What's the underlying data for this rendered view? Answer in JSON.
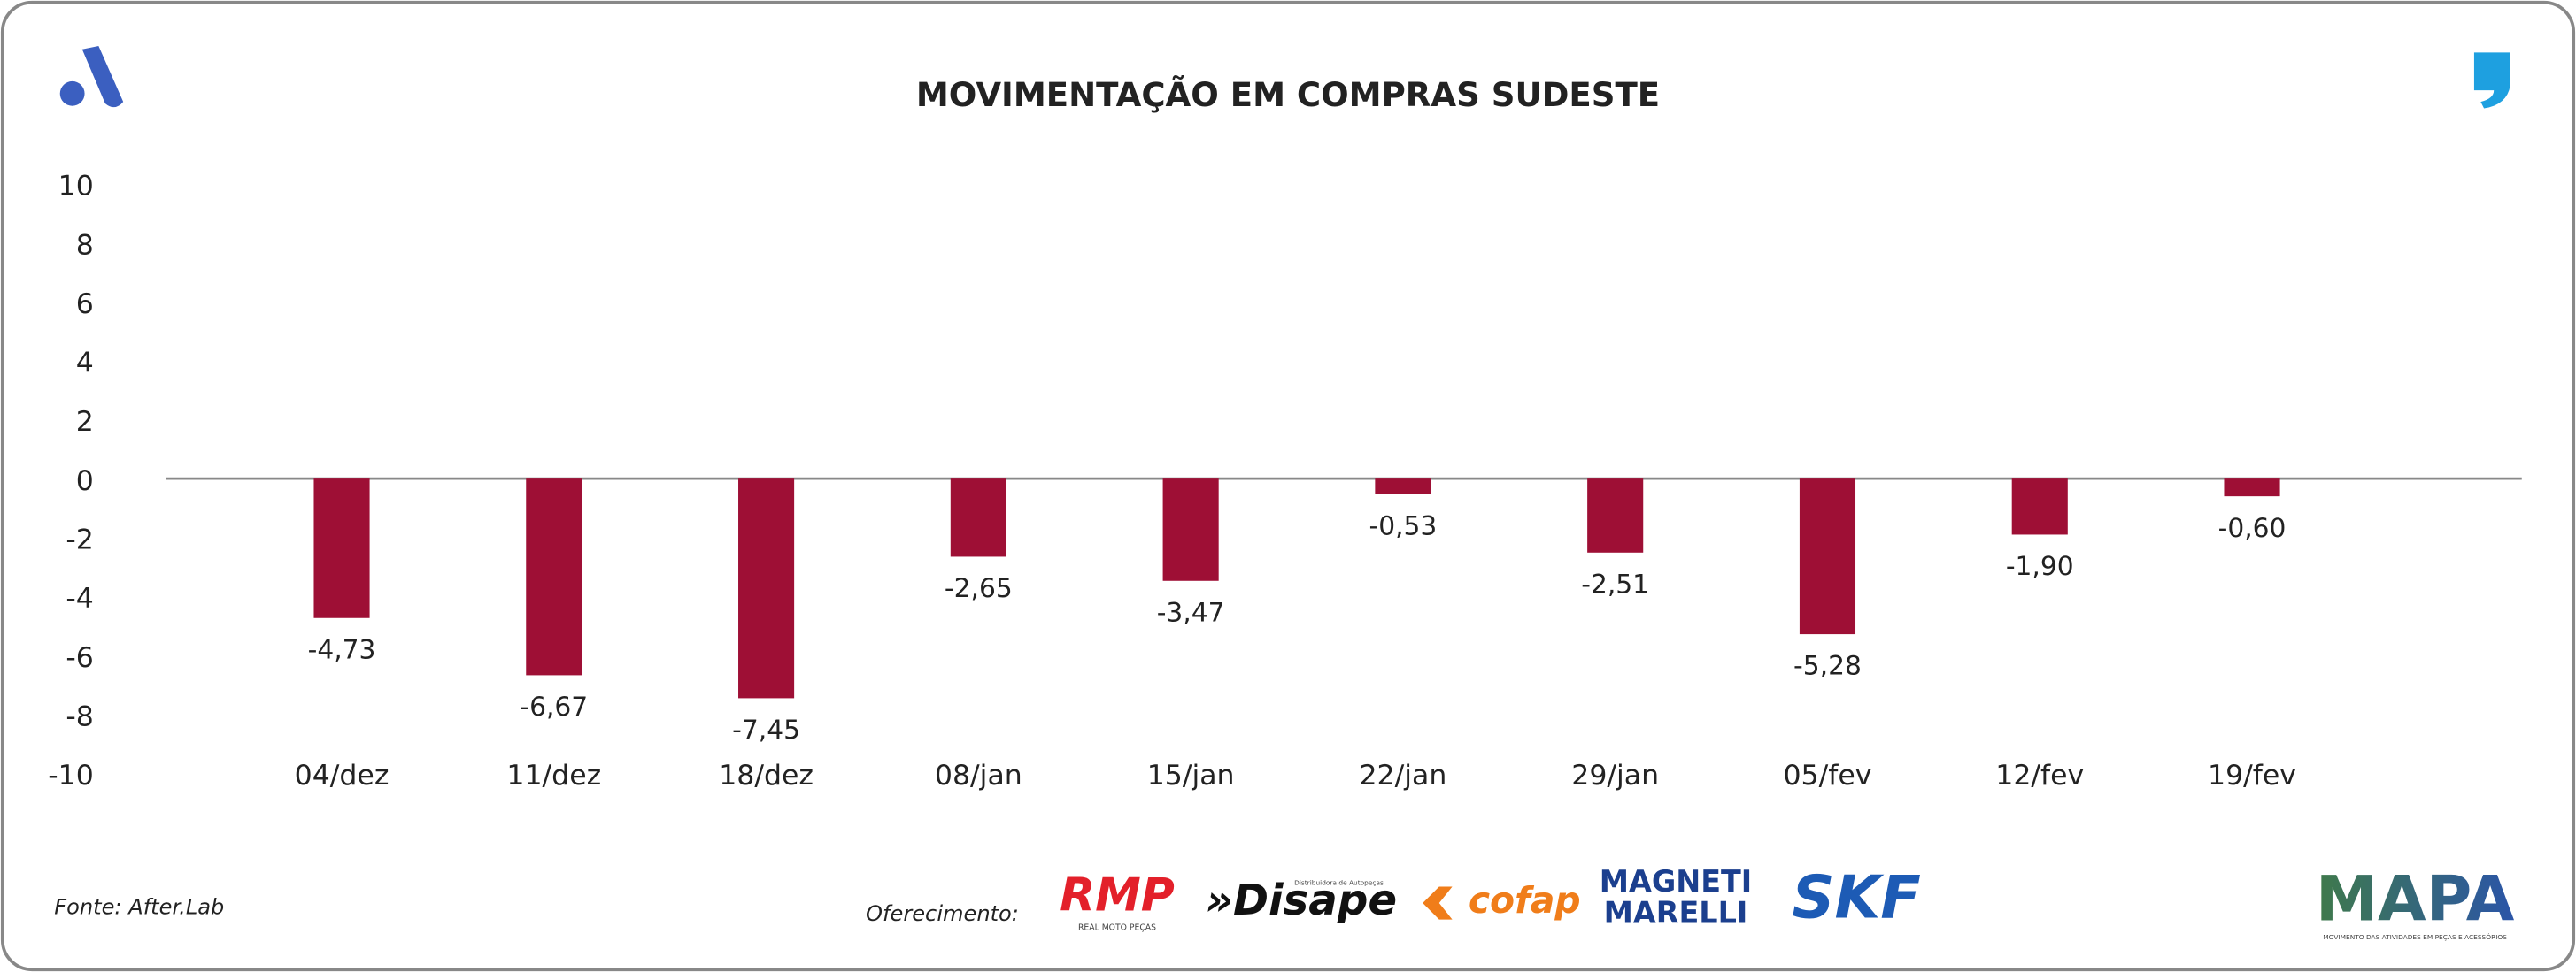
{
  "chart_data": {
    "type": "bar",
    "title": "MOVIMENTAÇÃO EM COMPRAS SUDESTE",
    "categories": [
      "04/dez",
      "11/dez",
      "18/dez",
      "08/jan",
      "15/jan",
      "22/jan",
      "29/jan",
      "05/fev",
      "12/fev",
      "19/fev"
    ],
    "values": [
      -4.73,
      -6.67,
      -7.45,
      -2.65,
      -3.47,
      -0.53,
      -2.51,
      -5.28,
      -1.9,
      -0.6
    ],
    "value_labels": [
      "-4,73",
      "-6,67",
      "-7,45",
      "-2,65",
      "-3,47",
      "-0,53",
      "-2,51",
      "-5,28",
      "-1,90",
      "-0,60"
    ],
    "color": "#9e0f35",
    "ylim": [
      -10,
      10
    ],
    "yticks": [
      -10,
      -8,
      -6,
      -4,
      -2,
      0,
      2,
      4,
      6,
      8,
      10
    ],
    "grid": false
  },
  "footer": {
    "source": "Fonte: After.Lab",
    "sponsor_label": "Oferecimento:",
    "sponsors": {
      "rmp": "RMP",
      "rmp_sub": "REAL MOTO PEÇAS",
      "disape": "»Disape",
      "disape_sub": "Distribuidora de Autopeças",
      "cofap": "cofap",
      "magneti": "MAGNETI",
      "marelli": "MARELLI",
      "skf": "SKF"
    },
    "brand": "MAPA",
    "brand_sub": "MOVIMENTO DAS ATIVIDADES EM PEÇAS E ACESSÓRIOS"
  }
}
